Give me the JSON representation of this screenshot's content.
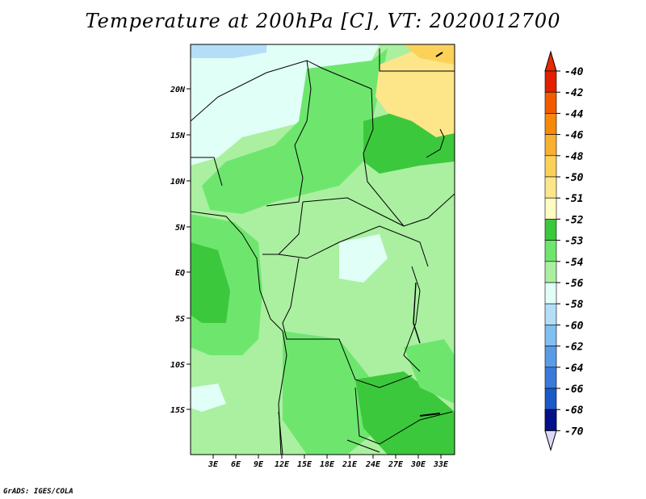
{
  "title": "Temperature at 200hPa [C], VT: 2020012700",
  "footer": "GrADS: IGES/COLA",
  "map": {
    "lat_labels": [
      "20N",
      "15N",
      "10N",
      "5N",
      "EQ",
      "5S",
      "10S",
      "15S"
    ],
    "lon_labels": [
      "3E",
      "6E",
      "9E",
      "12E",
      "15E",
      "18E",
      "21E",
      "24E",
      "27E",
      "30E",
      "33E"
    ]
  },
  "colorbar": {
    "levels": [
      "-40",
      "-42",
      "-44",
      "-46",
      "-48",
      "-50",
      "-51",
      "-52",
      "-53",
      "-54",
      "-56",
      "-58",
      "-60",
      "-62",
      "-64",
      "-66",
      "-68",
      "-70"
    ],
    "colors": [
      "#e02000",
      "#f25a00",
      "#f58a0a",
      "#f8b030",
      "#fbd15a",
      "#fde58a",
      "#fefcc0",
      "#3cc83c",
      "#6ee66e",
      "#aaf0a0",
      "#e0fff6",
      "#b4def8",
      "#80c0f0",
      "#5a9be6",
      "#3a7ad8",
      "#1a5ac8",
      "#0c3aa8",
      "#04108a"
    ],
    "top_color": "#e82a00",
    "bottom_color": "#dcd8f8"
  }
}
